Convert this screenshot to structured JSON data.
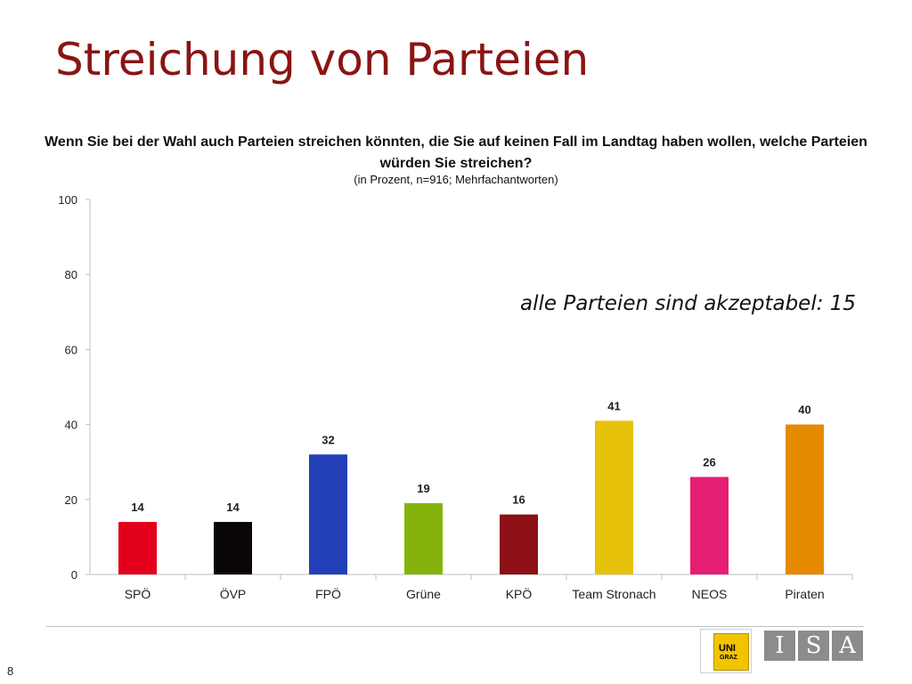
{
  "slide": {
    "title": "Streichung von Parteien",
    "page_number": "8"
  },
  "chart_data": {
    "type": "bar",
    "title": "Wenn Sie bei der Wahl auch Parteien streichen könnten, die Sie auf keinen Fall im Landtag haben wollen, welche Parteien würden Sie streichen?",
    "subtitle": "(in Prozent, n=916; Mehrfachantworten)",
    "categories": [
      "SPÖ",
      "ÖVP",
      "FPÖ",
      "Grüne",
      "KPÖ",
      "Team Stronach",
      "NEOS",
      "Piraten"
    ],
    "values": [
      14,
      14,
      32,
      19,
      16,
      41,
      26,
      40
    ],
    "colors": [
      "#e3001b",
      "#0a0606",
      "#2340b8",
      "#84b40c",
      "#8c1016",
      "#e6c20a",
      "#e61e74",
      "#e68a00"
    ],
    "ylim": [
      0,
      100
    ],
    "yticks": [
      0,
      20,
      40,
      60,
      80,
      100
    ],
    "xlabel": "",
    "ylabel": "",
    "grid": false,
    "annotation": "alle Parteien sind akzeptabel: 15"
  },
  "logos": {
    "uni_text": "UNI",
    "uni_sub": "GRAZ",
    "isa_letters": [
      "I",
      "S",
      "A"
    ]
  }
}
